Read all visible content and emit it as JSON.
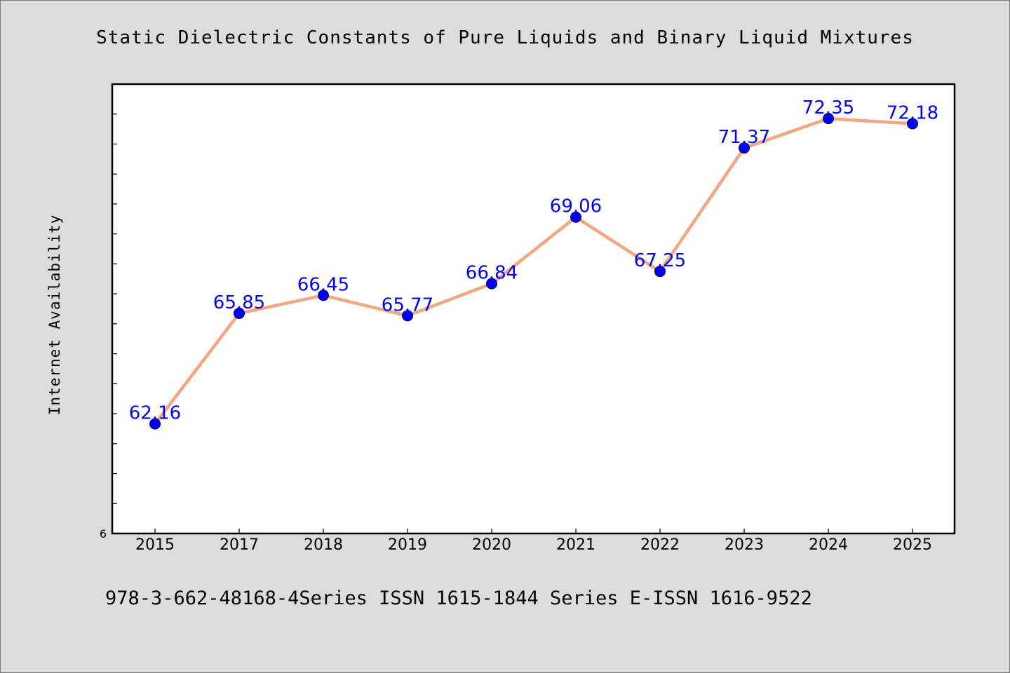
{
  "chart_data": {
    "type": "line",
    "title": "Static Dielectric Constants of Pure Liquids and Binary Liquid Mixtures",
    "ylabel": "Internet Availability",
    "xlabel": "",
    "x": [
      "2015",
      "2017",
      "2018",
      "2019",
      "2020",
      "2021",
      "2022",
      "2023",
      "2024",
      "2025"
    ],
    "series": [
      {
        "values": [
          62.16,
          65.85,
          66.45,
          65.77,
          66.84,
          69.06,
          67.25,
          71.37,
          72.35,
          72.18
        ],
        "labels": [
          "62.16",
          "65.85",
          "66.45",
          "65.77",
          "66.84",
          "69.06",
          "67.25",
          "71.37",
          "72.35",
          "72.18"
        ]
      }
    ],
    "ylim": [
      58.5,
      73.5
    ],
    "y_tick_labels": [
      "6"
    ],
    "grid": false,
    "colors": {
      "line": "#f4a582",
      "marker": "#0000ff",
      "label": "#0000ff",
      "frame": "#000000",
      "plot_background": "#ffffff",
      "page_background": "#dcdcdc"
    }
  },
  "footer": {
    "text": "978-3-662-48168-4Series ISSN 1615-1844 Series E-ISSN 1616-9522"
  }
}
